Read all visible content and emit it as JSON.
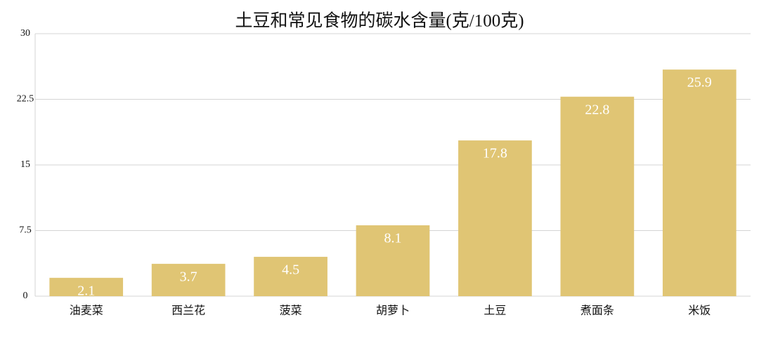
{
  "chart_data": {
    "type": "bar",
    "title": "土豆和常见食物的碳水含量(克/100克)",
    "categories": [
      "油麦菜",
      "西兰花",
      "菠菜",
      "胡萝卜",
      "土豆",
      "煮面条",
      "米饭"
    ],
    "values": [
      2.1,
      3.7,
      4.5,
      8.1,
      17.8,
      22.8,
      25.9
    ],
    "color": "#e0c574",
    "ylim": [
      0,
      30
    ],
    "yticks": [
      0,
      7.5,
      15,
      22.5,
      30
    ],
    "grid": true
  }
}
